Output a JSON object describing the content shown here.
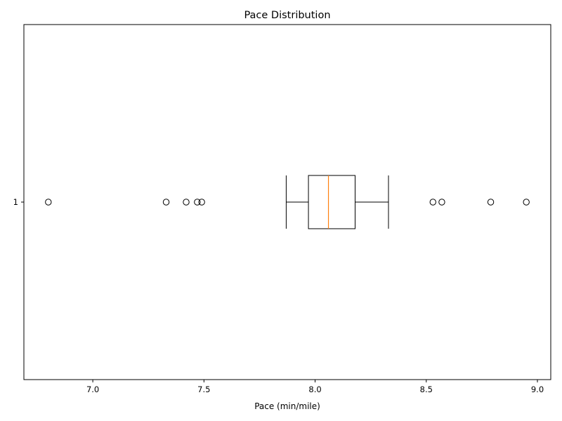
{
  "chart_data": {
    "type": "boxplot",
    "orientation": "horizontal",
    "title": "Pace Distribution",
    "xlabel": "Pace (min/mile)",
    "ylabel": "",
    "xlim": [
      6.69,
      9.06
    ],
    "x_ticks": [
      7.0,
      7.5,
      8.0,
      8.5,
      9.0
    ],
    "x_tick_labels": [
      "7.0",
      "7.5",
      "8.0",
      "8.5",
      "9.0"
    ],
    "y_tick_labels": [
      "1"
    ],
    "grid": false,
    "colors": {
      "box": "#000000",
      "median": "#ff7f0e",
      "outlier": "#000000"
    },
    "boxes": [
      {
        "label": "1",
        "whisker_low": 7.87,
        "q1": 7.97,
        "median": 8.06,
        "q3": 8.18,
        "whisker_high": 8.33,
        "outliers": [
          6.8,
          7.33,
          7.42,
          7.47,
          7.49,
          8.53,
          8.57,
          8.79,
          8.95
        ]
      }
    ]
  }
}
